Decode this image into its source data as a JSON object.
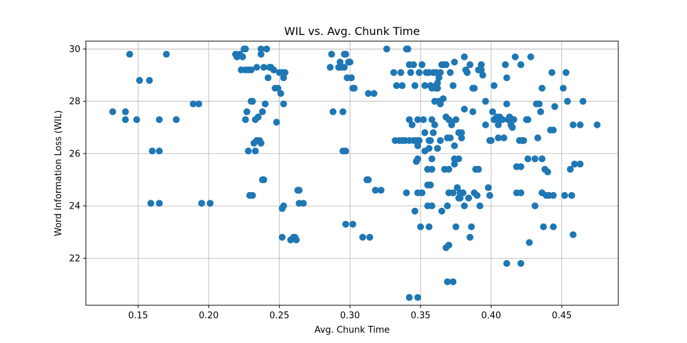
{
  "chart_data": {
    "type": "scatter",
    "title": "WIL vs. Avg. Chunk Time",
    "xlabel": "Avg. Chunk Time",
    "ylabel": "Word Information Loss (WIL)",
    "xlim": [
      0.113,
      0.49
    ],
    "ylim": [
      20.2,
      30.3
    ],
    "xticks": [
      "0.15",
      "0.20",
      "0.25",
      "0.30",
      "0.35",
      "0.40",
      "0.45"
    ],
    "xtick_values": [
      0.15,
      0.2,
      0.25,
      0.3,
      0.35,
      0.4,
      0.45
    ],
    "yticks": [
      "22",
      "24",
      "26",
      "28",
      "30"
    ],
    "ytick_values": [
      22,
      24,
      26,
      28,
      30
    ],
    "grid": true,
    "marker_color": "#1f77b4",
    "points": [
      [
        0.132,
        27.6
      ],
      [
        0.141,
        27.6
      ],
      [
        0.141,
        27.3
      ],
      [
        0.144,
        29.8
      ],
      [
        0.149,
        27.3
      ],
      [
        0.151,
        28.8
      ],
      [
        0.158,
        28.8
      ],
      [
        0.159,
        24.1
      ],
      [
        0.16,
        26.1
      ],
      [
        0.165,
        26.1
      ],
      [
        0.165,
        27.3
      ],
      [
        0.165,
        24.1
      ],
      [
        0.17,
        29.8
      ],
      [
        0.177,
        27.3
      ],
      [
        0.189,
        27.9
      ],
      [
        0.193,
        27.9
      ],
      [
        0.195,
        24.1
      ],
      [
        0.201,
        24.1
      ],
      [
        0.219,
        29.8
      ],
      [
        0.22,
        29.7
      ],
      [
        0.222,
        29.8
      ],
      [
        0.223,
        29.2
      ],
      [
        0.224,
        29.7
      ],
      [
        0.225,
        30.0
      ],
      [
        0.226,
        30.0
      ],
      [
        0.226,
        29.2
      ],
      [
        0.226,
        27.3
      ],
      [
        0.227,
        27.6
      ],
      [
        0.228,
        26.1
      ],
      [
        0.228,
        29.2
      ],
      [
        0.229,
        24.4
      ],
      [
        0.23,
        28.0
      ],
      [
        0.23,
        29.2
      ],
      [
        0.231,
        28.0
      ],
      [
        0.231,
        24.4
      ],
      [
        0.232,
        26.4
      ],
      [
        0.233,
        26.1
      ],
      [
        0.233,
        27.3
      ],
      [
        0.234,
        29.3
      ],
      [
        0.234,
        26.5
      ],
      [
        0.235,
        27.4
      ],
      [
        0.236,
        26.5
      ],
      [
        0.237,
        30.0
      ],
      [
        0.237,
        26.4
      ],
      [
        0.237,
        29.8
      ],
      [
        0.238,
        27.6
      ],
      [
        0.238,
        25.0
      ],
      [
        0.239,
        29.3
      ],
      [
        0.239,
        25.0
      ],
      [
        0.24,
        27.9
      ],
      [
        0.241,
        30.0
      ],
      [
        0.242,
        28.9
      ],
      [
        0.243,
        29.3
      ],
      [
        0.244,
        29.3
      ],
      [
        0.246,
        29.2
      ],
      [
        0.247,
        28.5
      ],
      [
        0.248,
        27.2
      ],
      [
        0.249,
        28.5
      ],
      [
        0.25,
        29.1
      ],
      [
        0.251,
        28.3
      ],
      [
        0.252,
        29.1
      ],
      [
        0.252,
        23.9
      ],
      [
        0.252,
        22.8
      ],
      [
        0.253,
        28.9
      ],
      [
        0.253,
        27.9
      ],
      [
        0.253,
        24.0
      ],
      [
        0.254,
        29.1
      ],
      [
        0.258,
        22.7
      ],
      [
        0.26,
        22.8
      ],
      [
        0.261,
        22.8
      ],
      [
        0.262,
        22.7
      ],
      [
        0.263,
        24.6
      ],
      [
        0.264,
        24.1
      ],
      [
        0.264,
        24.6
      ],
      [
        0.267,
        24.1
      ],
      [
        0.286,
        29.3
      ],
      [
        0.287,
        29.8
      ],
      [
        0.288,
        27.6
      ],
      [
        0.292,
        29.3
      ],
      [
        0.293,
        29.5
      ],
      [
        0.294,
        29.3
      ],
      [
        0.295,
        27.6
      ],
      [
        0.295,
        26.1
      ],
      [
        0.296,
        29.3
      ],
      [
        0.296,
        29.8
      ],
      [
        0.297,
        26.1
      ],
      [
        0.297,
        29.8
      ],
      [
        0.297,
        23.3
      ],
      [
        0.298,
        28.9
      ],
      [
        0.299,
        29.5
      ],
      [
        0.3,
        29.5
      ],
      [
        0.301,
        28.9
      ],
      [
        0.302,
        23.3
      ],
      [
        0.302,
        28.5
      ],
      [
        0.303,
        28.5
      ],
      [
        0.309,
        22.8
      ],
      [
        0.312,
        25.0
      ],
      [
        0.313,
        28.3
      ],
      [
        0.313,
        25.0
      ],
      [
        0.314,
        22.8
      ],
      [
        0.317,
        28.3
      ],
      [
        0.318,
        24.6
      ],
      [
        0.322,
        24.6
      ],
      [
        0.326,
        30.0
      ],
      [
        0.331,
        29.1
      ],
      [
        0.332,
        26.5
      ],
      [
        0.333,
        28.6
      ],
      [
        0.335,
        26.5
      ],
      [
        0.336,
        29.1
      ],
      [
        0.337,
        26.5
      ],
      [
        0.337,
        28.6
      ],
      [
        0.339,
        26.5
      ],
      [
        0.34,
        30.0
      ],
      [
        0.34,
        24.5
      ],
      [
        0.341,
        30.0
      ],
      [
        0.342,
        20.5
      ],
      [
        0.342,
        26.5
      ],
      [
        0.342,
        27.3
      ],
      [
        0.342,
        29.4
      ],
      [
        0.343,
        29.1
      ],
      [
        0.344,
        27.1
      ],
      [
        0.345,
        26.5
      ],
      [
        0.345,
        29.4
      ],
      [
        0.346,
        23.8
      ],
      [
        0.346,
        28.6
      ],
      [
        0.347,
        25.7
      ],
      [
        0.347,
        26.5
      ],
      [
        0.348,
        25.8
      ],
      [
        0.348,
        20.5
      ],
      [
        0.348,
        27.3
      ],
      [
        0.348,
        26.3
      ],
      [
        0.348,
        24.5
      ],
      [
        0.349,
        26.5
      ],
      [
        0.349,
        29.1
      ],
      [
        0.35,
        23.2
      ],
      [
        0.351,
        29.4
      ],
      [
        0.351,
        24.5
      ],
      [
        0.352,
        27.3
      ],
      [
        0.353,
        26.8
      ],
      [
        0.353,
        28.6
      ],
      [
        0.353,
        26.1
      ],
      [
        0.354,
        29.1
      ],
      [
        0.355,
        25.4
      ],
      [
        0.355,
        24.8
      ],
      [
        0.355,
        24.0
      ],
      [
        0.356,
        26.5
      ],
      [
        0.356,
        29.1
      ],
      [
        0.356,
        26.2
      ],
      [
        0.356,
        23.2
      ],
      [
        0.357,
        24.8
      ],
      [
        0.357,
        26.5
      ],
      [
        0.357,
        28.6
      ],
      [
        0.358,
        27.3
      ],
      [
        0.358,
        25.8
      ],
      [
        0.358,
        24.0
      ],
      [
        0.358,
        25.4
      ],
      [
        0.358,
        28.5
      ],
      [
        0.359,
        26.8
      ],
      [
        0.359,
        29.1
      ],
      [
        0.36,
        28.0
      ],
      [
        0.36,
        27.1
      ],
      [
        0.361,
        28.5
      ],
      [
        0.361,
        28.6
      ],
      [
        0.361,
        29.1
      ],
      [
        0.362,
        28.7
      ],
      [
        0.362,
        26.2
      ],
      [
        0.362,
        28.5
      ],
      [
        0.363,
        28.9
      ],
      [
        0.363,
        28.0
      ],
      [
        0.364,
        29.1
      ],
      [
        0.364,
        26.5
      ],
      [
        0.364,
        27.9
      ],
      [
        0.365,
        29.4
      ],
      [
        0.365,
        23.8
      ],
      [
        0.366,
        29.4
      ],
      [
        0.366,
        28.1
      ],
      [
        0.367,
        25.4
      ],
      [
        0.368,
        29.4
      ],
      [
        0.368,
        27.4
      ],
      [
        0.368,
        22.4
      ],
      [
        0.369,
        26.6
      ],
      [
        0.369,
        21.1
      ],
      [
        0.369,
        24.0
      ],
      [
        0.37,
        25.4
      ],
      [
        0.37,
        22.5
      ],
      [
        0.37,
        27.3
      ],
      [
        0.37,
        24.5
      ],
      [
        0.371,
        26.6
      ],
      [
        0.371,
        29.1
      ],
      [
        0.372,
        27.1
      ],
      [
        0.372,
        27.2
      ],
      [
        0.373,
        21.1
      ],
      [
        0.373,
        28.6
      ],
      [
        0.373,
        24.5
      ],
      [
        0.374,
        29.5
      ],
      [
        0.374,
        26.3
      ],
      [
        0.374,
        25.6
      ],
      [
        0.374,
        25.8
      ],
      [
        0.375,
        23.2
      ],
      [
        0.375,
        27.3
      ],
      [
        0.376,
        24.7
      ],
      [
        0.377,
        26.8
      ],
      [
        0.377,
        24.3
      ],
      [
        0.377,
        25.8
      ],
      [
        0.378,
        24.5
      ],
      [
        0.378,
        24.3
      ],
      [
        0.379,
        26.6
      ],
      [
        0.379,
        26.8
      ],
      [
        0.38,
        24.5
      ],
      [
        0.38,
        24.5
      ],
      [
        0.381,
        29.7
      ],
      [
        0.381,
        27.7
      ],
      [
        0.381,
        24.0
      ],
      [
        0.382,
        29.2
      ],
      [
        0.383,
        29.1
      ],
      [
        0.384,
        24.3
      ],
      [
        0.385,
        22.8
      ],
      [
        0.385,
        29.4
      ],
      [
        0.386,
        23.2
      ],
      [
        0.387,
        27.6
      ],
      [
        0.387,
        28.5
      ],
      [
        0.388,
        24.5
      ],
      [
        0.388,
        28.5
      ],
      [
        0.389,
        25.4
      ],
      [
        0.39,
        24.4
      ],
      [
        0.391,
        25.4
      ],
      [
        0.391,
        29.2
      ],
      [
        0.392,
        24.0
      ],
      [
        0.393,
        29.2
      ],
      [
        0.393,
        29.4
      ],
      [
        0.394,
        29.0
      ],
      [
        0.396,
        28.0
      ],
      [
        0.396,
        27.1
      ],
      [
        0.398,
        24.7
      ],
      [
        0.399,
        26.5
      ],
      [
        0.399,
        24.4
      ],
      [
        0.4,
        26.5
      ],
      [
        0.401,
        27.6
      ],
      [
        0.402,
        27.3
      ],
      [
        0.402,
        28.6
      ],
      [
        0.404,
        27.4
      ],
      [
        0.405,
        27.1
      ],
      [
        0.405,
        26.6
      ],
      [
        0.406,
        27.3
      ],
      [
        0.406,
        27.4
      ],
      [
        0.407,
        27.3
      ],
      [
        0.408,
        27.3
      ],
      [
        0.409,
        26.6
      ],
      [
        0.41,
        29.4
      ],
      [
        0.411,
        27.9
      ],
      [
        0.411,
        28.9
      ],
      [
        0.411,
        21.8
      ],
      [
        0.412,
        27.3
      ],
      [
        0.413,
        27.4
      ],
      [
        0.414,
        27.1
      ],
      [
        0.415,
        27.0
      ],
      [
        0.416,
        27.3
      ],
      [
        0.417,
        29.7
      ],
      [
        0.418,
        24.5
      ],
      [
        0.418,
        25.5
      ],
      [
        0.42,
        26.5
      ],
      [
        0.421,
        21.8
      ],
      [
        0.421,
        29.4
      ],
      [
        0.421,
        25.5
      ],
      [
        0.421,
        24.5
      ],
      [
        0.422,
        26.5
      ],
      [
        0.423,
        26.5
      ],
      [
        0.425,
        27.3
      ],
      [
        0.426,
        25.8
      ],
      [
        0.426,
        27.3
      ],
      [
        0.427,
        22.6
      ],
      [
        0.428,
        29.7
      ],
      [
        0.431,
        24.0
      ],
      [
        0.431,
        25.8
      ],
      [
        0.432,
        27.9
      ],
      [
        0.433,
        26.6
      ],
      [
        0.434,
        27.9
      ],
      [
        0.435,
        27.6
      ],
      [
        0.436,
        25.8
      ],
      [
        0.436,
        28.5
      ],
      [
        0.436,
        24.5
      ],
      [
        0.437,
        23.2
      ],
      [
        0.438,
        25.4
      ],
      [
        0.439,
        24.4
      ],
      [
        0.44,
        25.3
      ],
      [
        0.441,
        24.4
      ],
      [
        0.442,
        26.9
      ],
      [
        0.443,
        29.1
      ],
      [
        0.444,
        26.9
      ],
      [
        0.444,
        23.2
      ],
      [
        0.444,
        24.4
      ],
      [
        0.445,
        27.8
      ],
      [
        0.451,
        28.5
      ],
      [
        0.452,
        24.4
      ],
      [
        0.453,
        29.1
      ],
      [
        0.454,
        28.0
      ],
      [
        0.456,
        25.4
      ],
      [
        0.457,
        24.4
      ],
      [
        0.458,
        22.9
      ],
      [
        0.458,
        27.1
      ],
      [
        0.459,
        25.6
      ],
      [
        0.463,
        27.1
      ],
      [
        0.463,
        25.6
      ],
      [
        0.465,
        28.0
      ],
      [
        0.475,
        27.1
      ]
    ]
  }
}
